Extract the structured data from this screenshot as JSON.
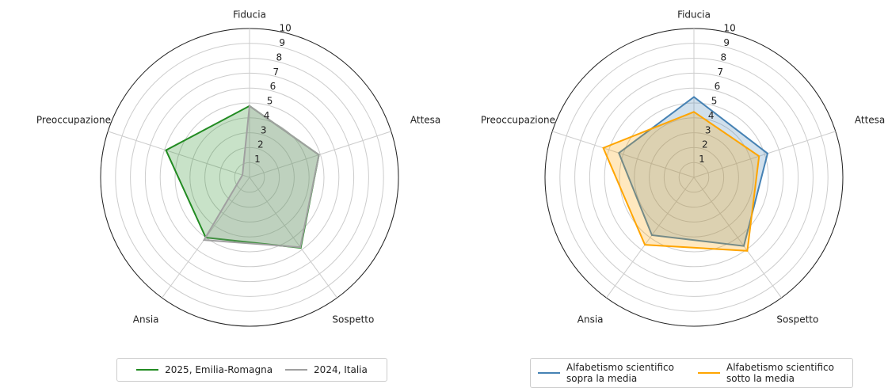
{
  "chart_data": [
    {
      "type": "radar",
      "categories": [
        "Fiducia",
        "Attesa",
        "Sospetto",
        "Ansia",
        "Preoccupazione"
      ],
      "series": [
        {
          "name": "2025, Emilia-Romagna",
          "color": "#228b22",
          "values": [
            4.8,
            4.9,
            5.85,
            5.0,
            5.9
          ]
        },
        {
          "name": "2024, Italia",
          "color": "#a0a0a0",
          "values": [
            4.8,
            4.9,
            5.8,
            5.2,
            0.5
          ]
        }
      ],
      "rlim": [
        0,
        10
      ],
      "rticks": [
        1,
        2,
        3,
        4,
        5,
        6,
        7,
        8,
        9,
        10
      ],
      "grid": true,
      "legend": "bottom"
    },
    {
      "type": "radar",
      "categories": [
        "Fiducia",
        "Attesa",
        "Sospetto",
        "Ansia",
        "Preoccupazione"
      ],
      "series": [
        {
          "name": "Alfabetismo scientifico sopra la media",
          "color": "#4682b4",
          "values": [
            5.4,
            5.2,
            5.7,
            4.8,
            5.3
          ]
        },
        {
          "name": "Alfabetismo scientifico sotto la media",
          "color": "#ffa500",
          "values": [
            4.4,
            4.6,
            6.1,
            5.6,
            6.4
          ]
        }
      ],
      "rlim": [
        0,
        10
      ],
      "rticks": [
        1,
        2,
        3,
        4,
        5,
        6,
        7,
        8,
        9,
        10
      ],
      "grid": true,
      "legend": "bottom"
    }
  ]
}
